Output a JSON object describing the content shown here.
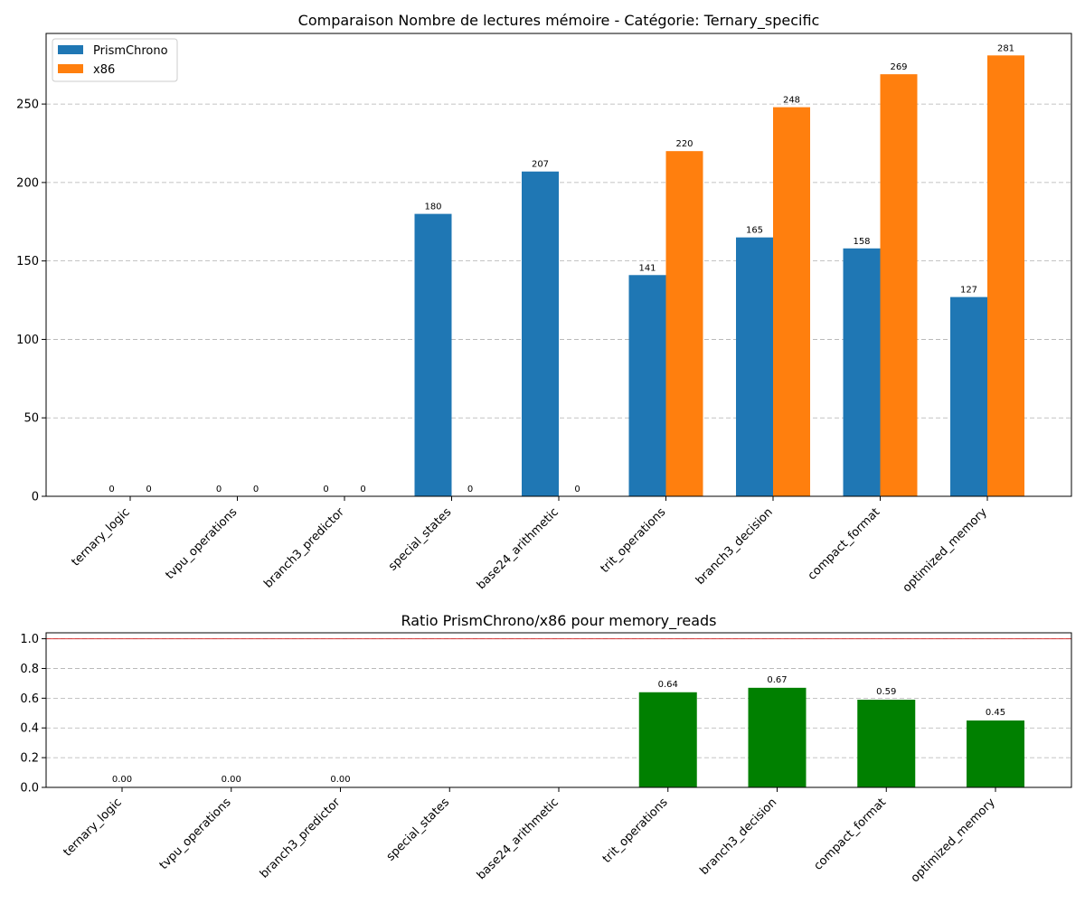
{
  "chart_data": [
    {
      "type": "bar",
      "title": "Comparaison Nombre de lectures mémoire - Catégorie: Ternary_specific",
      "xlabel": "",
      "ylabel": "",
      "categories": [
        "ternary_logic",
        "tvpu_operations",
        "branch3_predictor",
        "special_states",
        "base24_arithmetic",
        "trit_operations",
        "branch3_decision",
        "compact_format",
        "optimized_memory"
      ],
      "series": [
        {
          "name": "PrismChrono",
          "color": "#1f77b4",
          "values": [
            0,
            0,
            0,
            180,
            207,
            141,
            165,
            158,
            127
          ]
        },
        {
          "name": "x86",
          "color": "#ff7f0e",
          "values": [
            0,
            0,
            0,
            0,
            0,
            220,
            248,
            269,
            281
          ]
        }
      ],
      "ylim": [
        0,
        295
      ],
      "yticks": [
        0,
        50,
        100,
        150,
        200,
        250
      ],
      "grid": true,
      "legend": "top-left"
    },
    {
      "type": "bar",
      "title": "Ratio PrismChrono/x86 pour memory_reads",
      "xlabel": "",
      "ylabel": "",
      "categories": [
        "ternary_logic",
        "tvpu_operations",
        "branch3_predictor",
        "special_states",
        "base24_arithmetic",
        "trit_operations",
        "branch3_decision",
        "compact_format",
        "optimized_memory"
      ],
      "values": [
        0.0,
        0.0,
        0.0,
        null,
        null,
        0.64,
        0.67,
        0.59,
        0.45
      ],
      "value_labels": [
        "0.00",
        "0.00",
        "0.00",
        "",
        "",
        "0.64",
        "0.67",
        "0.59",
        "0.45"
      ],
      "color": "#008000",
      "reference_line": {
        "y": 1.0,
        "color": "#d62728"
      },
      "ylim": [
        0,
        1.04
      ],
      "yticks": [
        "0.0",
        "0.2",
        "0.4",
        "0.6",
        "0.8",
        "1.0"
      ],
      "grid": true
    }
  ]
}
